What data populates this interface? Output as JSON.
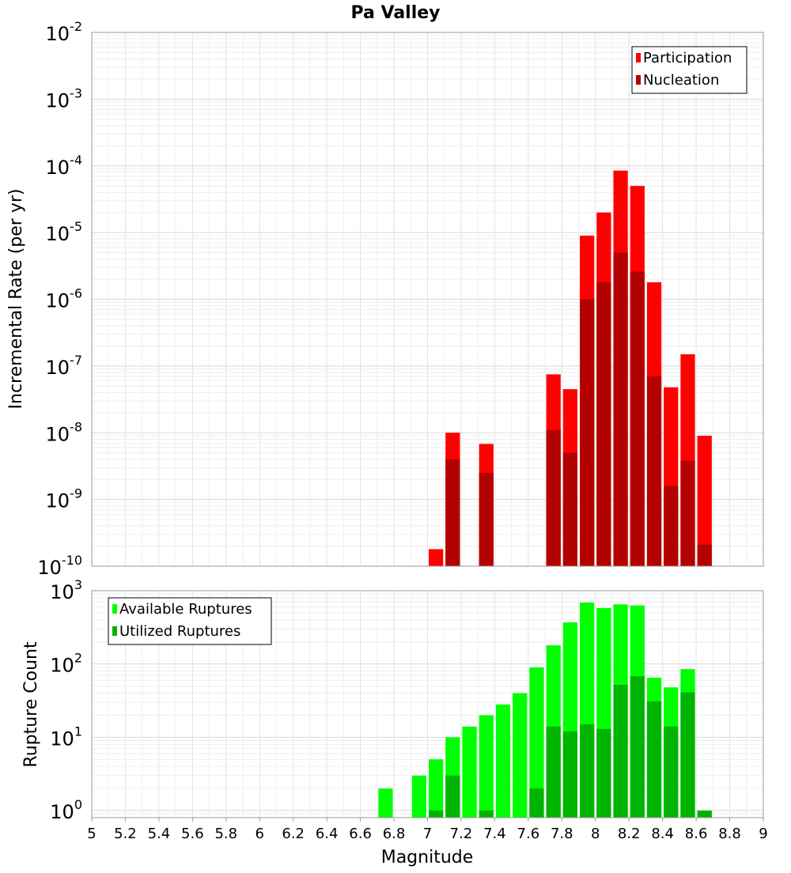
{
  "chart_data": [
    {
      "type": "bar",
      "title": "Pa Valley",
      "ylabel": "Incremental Rate (per yr)",
      "xlabel": "",
      "scale_y": "log",
      "xlim": [
        5,
        9
      ],
      "ylim": [
        1e-10,
        0.01
      ],
      "y_tick_exponents": [
        "-10",
        "-9",
        "-8",
        "-7",
        "-6",
        "-5",
        "-4",
        "-3",
        "-2"
      ],
      "grid": true,
      "legend_position": "top-right",
      "colors": {
        "Participation": "#ff0000",
        "Nucleation": "#b30000"
      },
      "series": [
        {
          "name": "Participation",
          "points": [
            {
              "x": 7.05,
              "y": 1.8e-10
            },
            {
              "x": 7.15,
              "y": 1e-08
            },
            {
              "x": 7.35,
              "y": 6.8e-09
            },
            {
              "x": 7.75,
              "y": 7.5e-08
            },
            {
              "x": 7.85,
              "y": 4.5e-08
            },
            {
              "x": 7.95,
              "y": 9e-06
            },
            {
              "x": 8.05,
              "y": 2e-05
            },
            {
              "x": 8.15,
              "y": 8.5e-05
            },
            {
              "x": 8.25,
              "y": 5e-05
            },
            {
              "x": 8.35,
              "y": 1.8e-06
            },
            {
              "x": 8.45,
              "y": 4.8e-08
            },
            {
              "x": 8.55,
              "y": 1.5e-07
            },
            {
              "x": 8.65,
              "y": 9e-09
            }
          ]
        },
        {
          "name": "Nucleation",
          "points": [
            {
              "x": 7.15,
              "y": 4e-09
            },
            {
              "x": 7.35,
              "y": 2.5e-09
            },
            {
              "x": 7.75,
              "y": 1.1e-08
            },
            {
              "x": 7.85,
              "y": 5e-09
            },
            {
              "x": 7.95,
              "y": 1e-06
            },
            {
              "x": 8.05,
              "y": 1.8e-06
            },
            {
              "x": 8.15,
              "y": 5e-06
            },
            {
              "x": 8.25,
              "y": 2.6e-06
            },
            {
              "x": 8.35,
              "y": 7e-08
            },
            {
              "x": 8.45,
              "y": 1.6e-09
            },
            {
              "x": 8.55,
              "y": 3.8e-09
            },
            {
              "x": 8.65,
              "y": 2.1e-10
            }
          ]
        }
      ]
    },
    {
      "type": "bar",
      "title": "",
      "ylabel": "Rupture Count",
      "xlabel": "Magnitude",
      "scale_y": "log",
      "xlim": [
        5,
        9
      ],
      "ylim": [
        0.8,
        1000
      ],
      "y_tick_exponents": [
        "0",
        "1",
        "2",
        "3"
      ],
      "x_ticks": [
        "5",
        "5.2",
        "5.4",
        "5.6",
        "5.8",
        "6",
        "6.2",
        "6.4",
        "6.6",
        "6.8",
        "7",
        "7.2",
        "7.4",
        "7.6",
        "7.8",
        "8",
        "8.2",
        "8.4",
        "8.6",
        "8.8",
        "9"
      ],
      "grid": true,
      "legend_position": "top-left",
      "colors": {
        "Available Ruptures": "#00ff00",
        "Utilized Ruptures": "#00b300"
      },
      "series": [
        {
          "name": "Available Ruptures",
          "points": [
            {
              "x": 6.75,
              "y": 2
            },
            {
              "x": 6.95,
              "y": 3
            },
            {
              "x": 7.05,
              "y": 5
            },
            {
              "x": 7.15,
              "y": 10
            },
            {
              "x": 7.25,
              "y": 14
            },
            {
              "x": 7.35,
              "y": 20
            },
            {
              "x": 7.45,
              "y": 28
            },
            {
              "x": 7.55,
              "y": 40
            },
            {
              "x": 7.65,
              "y": 90
            },
            {
              "x": 7.75,
              "y": 180
            },
            {
              "x": 7.85,
              "y": 370
            },
            {
              "x": 7.95,
              "y": 690
            },
            {
              "x": 8.05,
              "y": 580
            },
            {
              "x": 8.15,
              "y": 650
            },
            {
              "x": 8.25,
              "y": 630
            },
            {
              "x": 8.35,
              "y": 65
            },
            {
              "x": 8.45,
              "y": 48
            },
            {
              "x": 8.55,
              "y": 85
            },
            {
              "x": 8.65,
              "y": 1
            }
          ]
        },
        {
          "name": "Utilized Ruptures",
          "points": [
            {
              "x": 7.05,
              "y": 1
            },
            {
              "x": 7.15,
              "y": 3
            },
            {
              "x": 7.35,
              "y": 1
            },
            {
              "x": 7.65,
              "y": 2
            },
            {
              "x": 7.75,
              "y": 14
            },
            {
              "x": 7.85,
              "y": 12
            },
            {
              "x": 7.95,
              "y": 15
            },
            {
              "x": 8.05,
              "y": 13
            },
            {
              "x": 8.15,
              "y": 52
            },
            {
              "x": 8.25,
              "y": 68
            },
            {
              "x": 8.35,
              "y": 31
            },
            {
              "x": 8.45,
              "y": 14
            },
            {
              "x": 8.55,
              "y": 41
            },
            {
              "x": 8.65,
              "y": 1
            }
          ]
        }
      ]
    }
  ]
}
